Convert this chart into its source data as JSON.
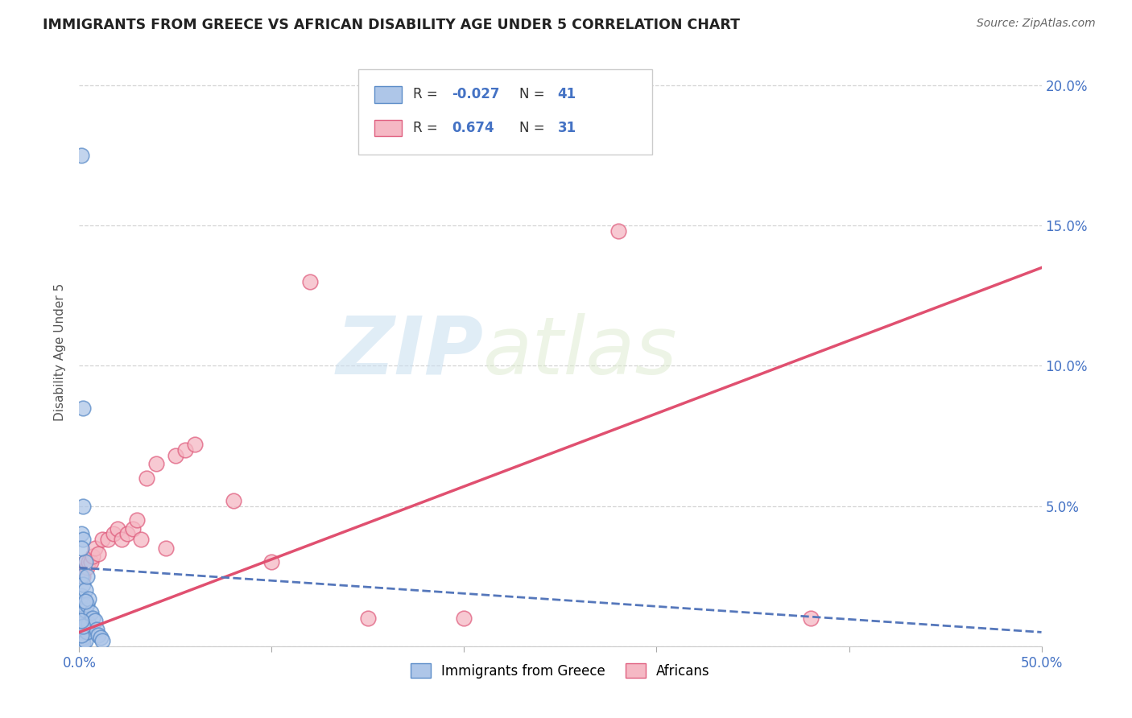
{
  "title": "IMMIGRANTS FROM GREECE VS AFRICAN DISABILITY AGE UNDER 5 CORRELATION CHART",
  "source": "Source: ZipAtlas.com",
  "ylabel": "Disability Age Under 5",
  "xlim": [
    0.0,
    0.5
  ],
  "ylim": [
    0.0,
    0.21
  ],
  "xticks": [
    0.0,
    0.1,
    0.2,
    0.3,
    0.4,
    0.5
  ],
  "yticks": [
    0.0,
    0.05,
    0.1,
    0.15,
    0.2
  ],
  "background_color": "#ffffff",
  "grid_color": "#d0d0d0",
  "blue_fill": "#aec6e8",
  "blue_edge": "#5b8cc8",
  "pink_fill": "#f5b8c4",
  "pink_edge": "#e06080",
  "blue_line_color": "#5577bb",
  "pink_line_color": "#e05070",
  "r_blue": -0.027,
  "n_blue": 41,
  "r_pink": 0.674,
  "n_pink": 31,
  "legend_label_blue": "Immigrants from Greece",
  "legend_label_pink": "Africans",
  "watermark_zip": "ZIP",
  "watermark_atlas": "atlas",
  "blue_scatter_x": [
    0.001,
    0.001,
    0.001,
    0.001,
    0.001,
    0.001,
    0.001,
    0.001,
    0.001,
    0.001,
    0.002,
    0.002,
    0.002,
    0.002,
    0.002,
    0.002,
    0.002,
    0.002,
    0.003,
    0.003,
    0.003,
    0.003,
    0.003,
    0.004,
    0.004,
    0.004,
    0.005,
    0.005,
    0.006,
    0.007,
    0.008,
    0.009,
    0.01,
    0.011,
    0.012,
    0.001,
    0.002,
    0.003,
    0.001,
    0.002,
    0.001
  ],
  "blue_scatter_y": [
    0.175,
    0.04,
    0.025,
    0.018,
    0.012,
    0.008,
    0.005,
    0.003,
    0.002,
    0.001,
    0.085,
    0.038,
    0.022,
    0.015,
    0.01,
    0.006,
    0.003,
    0.001,
    0.03,
    0.02,
    0.013,
    0.007,
    0.002,
    0.025,
    0.015,
    0.005,
    0.017,
    0.008,
    0.012,
    0.01,
    0.009,
    0.006,
    0.004,
    0.003,
    0.002,
    0.035,
    0.05,
    0.016,
    0.004,
    0.007,
    0.009
  ],
  "pink_scatter_x": [
    0.001,
    0.002,
    0.003,
    0.004,
    0.005,
    0.006,
    0.007,
    0.008,
    0.01,
    0.012,
    0.015,
    0.018,
    0.02,
    0.022,
    0.025,
    0.028,
    0.03,
    0.032,
    0.035,
    0.04,
    0.045,
    0.05,
    0.055,
    0.06,
    0.08,
    0.1,
    0.12,
    0.15,
    0.2,
    0.28,
    0.38
  ],
  "pink_scatter_y": [
    0.005,
    0.025,
    0.03,
    0.028,
    0.03,
    0.03,
    0.032,
    0.035,
    0.033,
    0.038,
    0.038,
    0.04,
    0.042,
    0.038,
    0.04,
    0.042,
    0.045,
    0.038,
    0.06,
    0.065,
    0.035,
    0.068,
    0.07,
    0.072,
    0.052,
    0.03,
    0.13,
    0.01,
    0.01,
    0.148,
    0.01
  ],
  "pink_trendline_x": [
    0.0,
    0.5
  ],
  "pink_trendline_y": [
    0.005,
    0.135
  ],
  "blue_trendline_x": [
    0.0,
    0.5
  ],
  "blue_trendline_y": [
    0.028,
    0.005
  ]
}
